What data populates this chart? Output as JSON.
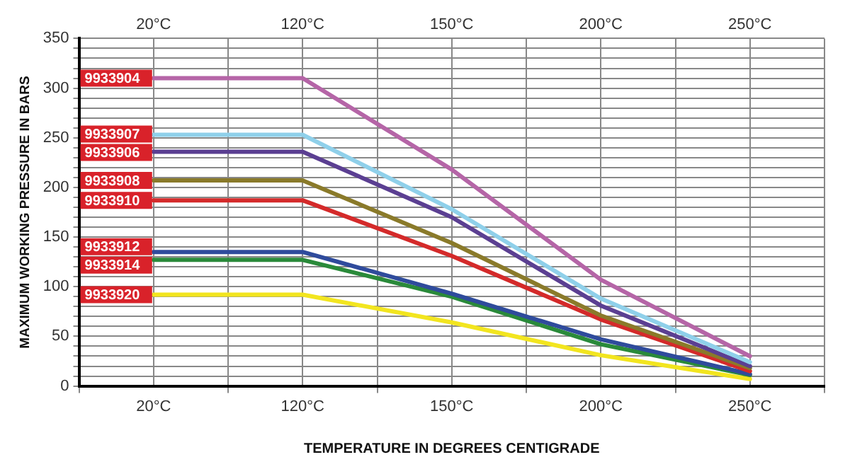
{
  "chart_data": {
    "type": "line",
    "xlabel": "TEMPERATURE IN DEGREES CENTIGRADE",
    "ylabel": "MAXIMUM WORKING PRESSURE IN BARS",
    "categories": [
      "20°C",
      "120°C",
      "150°C",
      "200°C",
      "250°C"
    ],
    "ylim": [
      0,
      350
    ],
    "yticks": [
      0,
      {
        "value": 10,
        "label": null
      },
      {
        "value": 20,
        "label": null
      },
      {
        "value": 30,
        "label": null
      },
      {
        "value": 40,
        "label": null
      },
      50,
      {
        "value": 60,
        "label": null
      },
      {
        "value": 70,
        "label": null
      },
      {
        "value": 80,
        "label": null
      },
      {
        "value": 90,
        "label": null
      },
      100,
      {
        "value": 110,
        "label": null
      },
      {
        "value": 120,
        "label": null
      },
      {
        "value": 130,
        "label": null
      },
      {
        "value": 140,
        "label": null
      },
      150,
      {
        "value": 160,
        "label": null
      },
      {
        "value": 170,
        "label": null
      },
      {
        "value": 180,
        "label": null
      },
      {
        "value": 190,
        "label": null
      },
      200,
      {
        "value": 210,
        "label": null
      },
      {
        "value": 220,
        "label": null
      },
      {
        "value": 230,
        "label": null
      },
      {
        "value": 240,
        "label": null
      },
      250,
      {
        "value": 260,
        "label": null
      },
      {
        "value": 270,
        "label": null
      },
      {
        "value": 280,
        "label": null
      },
      {
        "value": 290,
        "label": null
      },
      300,
      {
        "value": 310,
        "label": null
      },
      {
        "value": 320,
        "label": null
      },
      {
        "value": 330,
        "label": null
      },
      {
        "value": 340,
        "label": null
      },
      350
    ],
    "grid": true,
    "legend": false,
    "marker": "none",
    "line_style": "solid",
    "series": [
      {
        "name": "9933904",
        "color": "#b565a7",
        "values": [
          310,
          310,
          218,
          107,
          30
        ]
      },
      {
        "name": "9933907",
        "color": "#8fd0ea",
        "values": [
          253,
          253,
          178,
          88,
          24
        ]
      },
      {
        "name": "9933906",
        "color": "#5b3f92",
        "values": [
          236,
          236,
          170,
          81,
          20
        ]
      },
      {
        "name": "9933908",
        "color": "#8a7a2a",
        "values": [
          207,
          207,
          144,
          71,
          18
        ]
      },
      {
        "name": "9933910",
        "color": "#d42a2a",
        "values": [
          187,
          187,
          131,
          67,
          15
        ]
      },
      {
        "name": "9933912",
        "color": "#2f4b9c",
        "values": [
          135,
          135,
          93,
          47,
          12
        ]
      },
      {
        "name": "9933914",
        "color": "#2a8a3a",
        "values": [
          127,
          127,
          90,
          42,
          11
        ]
      },
      {
        "name": "9933920",
        "color": "#f2e51f",
        "values": [
          92,
          92,
          64,
          31,
          7
        ]
      }
    ]
  }
}
